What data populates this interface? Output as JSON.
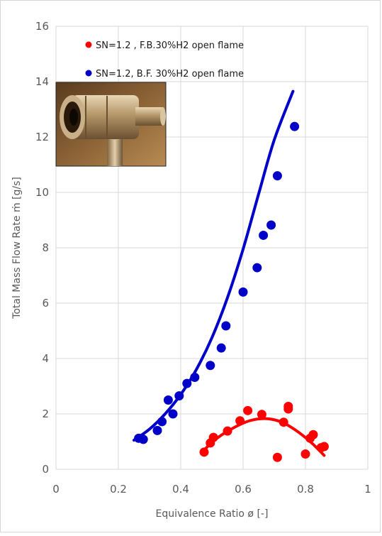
{
  "chart_data": {
    "type": "scatter",
    "xlabel": "Equivalence Ratio ø [-]",
    "ylabel": "Total Mass Flow Rate ṁ [g/s]",
    "xlim": [
      0,
      1
    ],
    "ylim": [
      0,
      16
    ],
    "x_ticks": [
      0,
      0.2,
      0.4,
      0.6,
      0.8,
      1
    ],
    "x_tick_labels": [
      "0",
      "0.2",
      "0.4",
      "0.6",
      "0.8",
      "1"
    ],
    "y_ticks": [
      0,
      2,
      4,
      6,
      8,
      10,
      12,
      14,
      16
    ],
    "y_tick_labels": [
      "0",
      "2",
      "4",
      "6",
      "8",
      "10",
      "12",
      "14",
      "16"
    ],
    "grid": true,
    "legend_position": "top-right",
    "photo_inset": "swirl burner photo",
    "series": [
      {
        "name": "SN=1.2 , F.B.30%H2  open flame",
        "color": "#ff0000",
        "points": [
          [
            0.475,
            0.62
          ],
          [
            0.495,
            0.95
          ],
          [
            0.505,
            1.15
          ],
          [
            0.55,
            1.38
          ],
          [
            0.59,
            1.75
          ],
          [
            0.615,
            2.12
          ],
          [
            0.66,
            1.98
          ],
          [
            0.71,
            0.43
          ],
          [
            0.73,
            1.7
          ],
          [
            0.745,
            2.18
          ],
          [
            0.745,
            2.27
          ],
          [
            0.8,
            0.55
          ],
          [
            0.815,
            1.12
          ],
          [
            0.825,
            1.25
          ],
          [
            0.85,
            0.78
          ],
          [
            0.86,
            0.82
          ]
        ],
        "fit": [
          [
            0.47,
            0.65
          ],
          [
            0.52,
            1.15
          ],
          [
            0.57,
            1.5
          ],
          [
            0.62,
            1.75
          ],
          [
            0.67,
            1.83
          ],
          [
            0.72,
            1.72
          ],
          [
            0.77,
            1.4
          ],
          [
            0.82,
            0.95
          ],
          [
            0.86,
            0.5
          ]
        ]
      },
      {
        "name": "SN=1.2, B.F. 30%H2 open flame",
        "color": "#0000c8",
        "points": [
          [
            0.265,
            1.12
          ],
          [
            0.28,
            1.08
          ],
          [
            0.325,
            1.4
          ],
          [
            0.34,
            1.72
          ],
          [
            0.36,
            2.5
          ],
          [
            0.375,
            2.0
          ],
          [
            0.395,
            2.65
          ],
          [
            0.42,
            3.1
          ],
          [
            0.445,
            3.32
          ],
          [
            0.495,
            3.75
          ],
          [
            0.53,
            4.38
          ],
          [
            0.545,
            5.18
          ],
          [
            0.6,
            6.4
          ],
          [
            0.645,
            7.28
          ],
          [
            0.665,
            8.45
          ],
          [
            0.69,
            8.82
          ],
          [
            0.71,
            10.6
          ],
          [
            0.765,
            12.38
          ]
        ],
        "fit": [
          [
            0.25,
            1.05
          ],
          [
            0.3,
            1.45
          ],
          [
            0.35,
            2.0
          ],
          [
            0.4,
            2.7
          ],
          [
            0.45,
            3.6
          ],
          [
            0.5,
            4.75
          ],
          [
            0.55,
            6.2
          ],
          [
            0.6,
            7.95
          ],
          [
            0.65,
            9.95
          ],
          [
            0.7,
            11.9
          ],
          [
            0.76,
            13.65
          ]
        ]
      }
    ]
  }
}
